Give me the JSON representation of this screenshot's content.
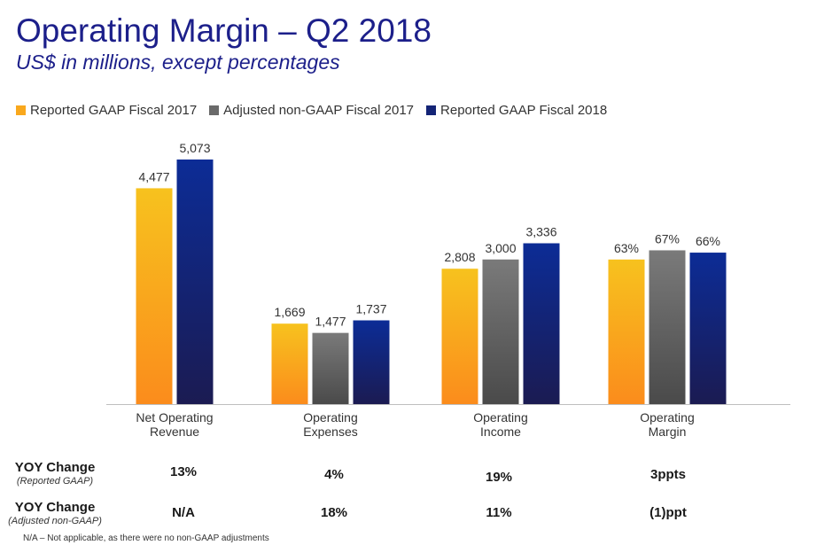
{
  "chart_data": {
    "type": "bar",
    "title": "Operating Margin – Q2 2018",
    "subtitle": "US$ in millions, except percentages",
    "categories": [
      [
        "Net Operating",
        "Revenue"
      ],
      [
        "Operating",
        "Expenses"
      ],
      [
        "Operating",
        "Income"
      ],
      [
        "Operating",
        "Margin"
      ]
    ],
    "series": [
      {
        "name": "Reported GAAP Fiscal 2017",
        "color_top": "#f7c21e",
        "color_bottom": "#fb8c1c",
        "values": [
          4477,
          1669,
          2808,
          63
        ],
        "labels": [
          "4,477",
          "1,669",
          "2,808",
          "63%"
        ]
      },
      {
        "name": "Adjusted non-GAAP Fiscal 2017",
        "color_top": "#7a7a7a",
        "color_bottom": "#4a4a4a",
        "values": [
          null,
          1477,
          3000,
          67
        ],
        "labels": [
          null,
          "1,477",
          "3,000",
          "67%"
        ]
      },
      {
        "name": "Reported GAAP Fiscal 2018",
        "color_top": "#0c2c96",
        "color_bottom": "#1b1b52",
        "values": [
          5073,
          1737,
          3336,
          66
        ],
        "labels": [
          "5,073",
          "1,737",
          "3,336",
          "66%"
        ]
      }
    ],
    "margin_scale_note": "Operating Margin bars are drawn on a separate percentage scale",
    "legend_position": "top-left",
    "grid": false
  },
  "yoy": {
    "rows": [
      {
        "title": "YOY Change",
        "subtitle": "(Reported GAAP)",
        "values": [
          "13%",
          "4%",
          "19%",
          "3ppts"
        ]
      },
      {
        "title": "YOY Change",
        "subtitle": "(Adjusted non-GAAP)",
        "values": [
          "N/A",
          "18%",
          "11%",
          "(1)ppt"
        ]
      }
    ]
  },
  "footnote": "N/A – Not applicable, as there were no non-GAAP adjustments",
  "colors": {
    "title": "#1c1f8a",
    "axis": "#bfbfbf"
  }
}
